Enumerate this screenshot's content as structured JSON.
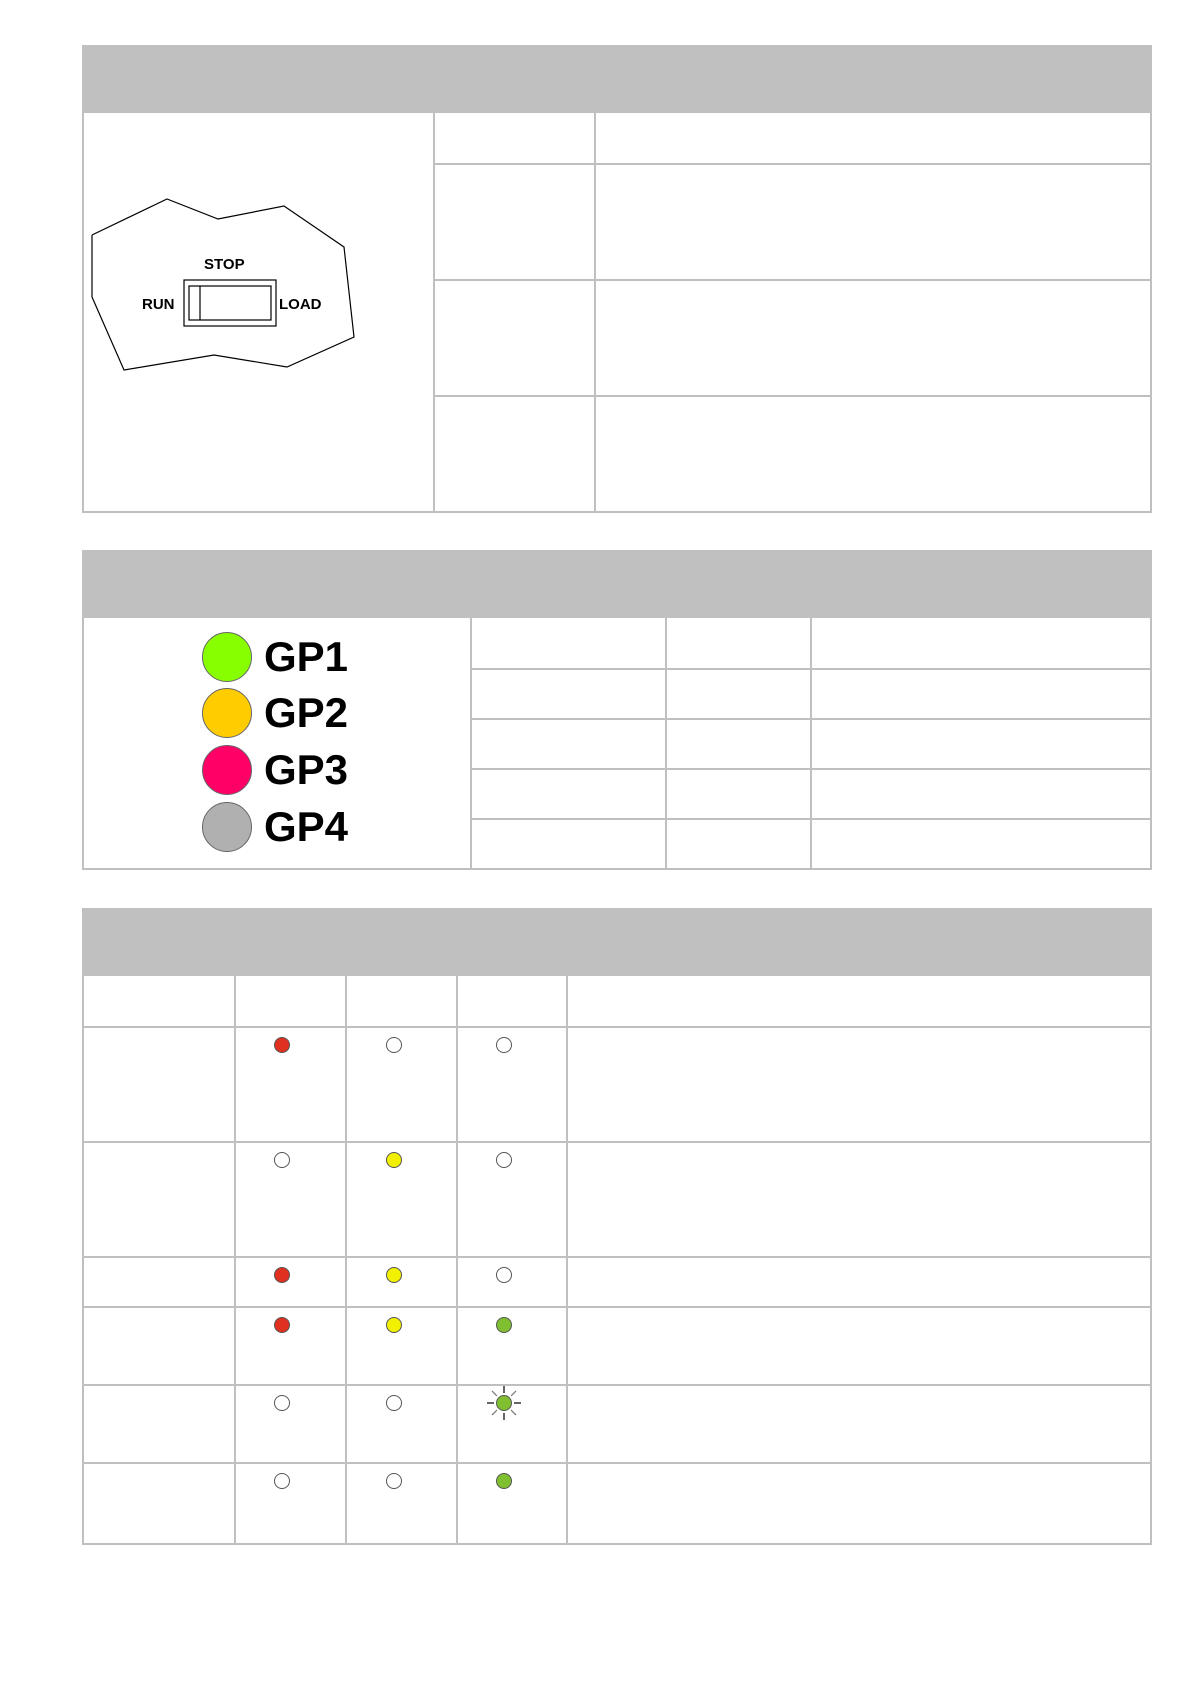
{
  "switch_diagram": {
    "stop": "STOP",
    "run": "RUN",
    "load": "LOAD"
  },
  "groups": [
    {
      "label": "GP1",
      "color": "#88ff00"
    },
    {
      "label": "GP2",
      "color": "#ffcc00"
    },
    {
      "label": "GP3",
      "color": "#ff0066"
    },
    {
      "label": "GP4",
      "color": "#b0b0b0"
    }
  ],
  "led_colors": {
    "red": "#e03020",
    "yellow": "#f0f000",
    "green": "#80c030",
    "off": "#ffffff"
  },
  "led_rows": [
    [
      "red",
      "off",
      "off"
    ],
    [
      "off",
      "yellow",
      "off"
    ],
    [
      "red",
      "yellow",
      "off"
    ],
    [
      "red",
      "yellow",
      "green"
    ],
    [
      "off",
      "off",
      "green-blinking"
    ],
    [
      "off",
      "off",
      "green"
    ]
  ]
}
